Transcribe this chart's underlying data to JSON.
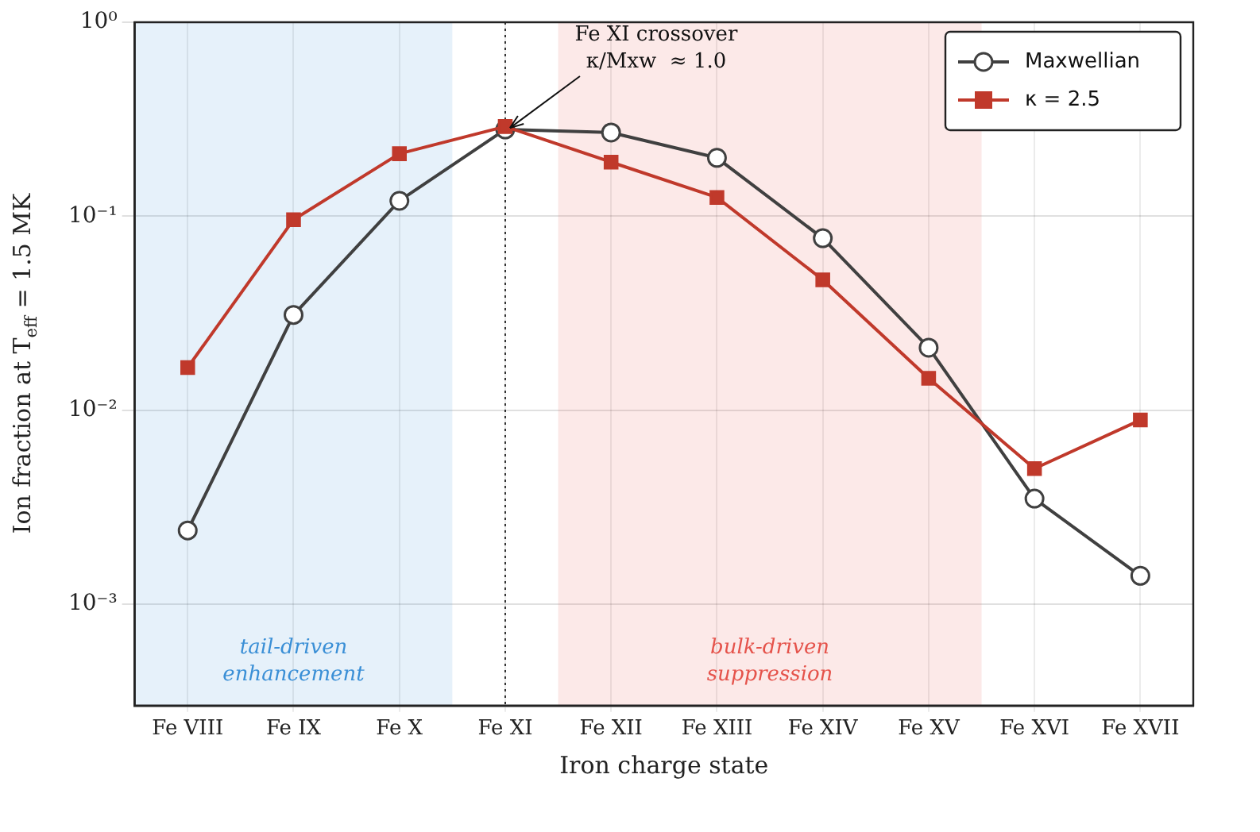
{
  "chart_data": {
    "type": "line",
    "xlabel": "Iron charge state",
    "ylabel": "Ion fraction at T$_{eff}$ = 1.5 MK",
    "categories": [
      "Fe VIII",
      "Fe IX",
      "Fe X",
      "Fe XI",
      "Fe XII",
      "Fe XIII",
      "Fe XIV",
      "Fe XV",
      "Fe XVI",
      "Fe XVII"
    ],
    "series": [
      {
        "name": "Maxwellian",
        "color": "#404040",
        "marker": "circle",
        "values": [
          0.0024,
          0.031,
          0.12,
          0.28,
          0.27,
          0.2,
          0.077,
          0.021,
          0.0035,
          0.0014
        ]
      },
      {
        "name": "κ = 2.5",
        "color": "#c0392b",
        "marker": "square",
        "values": [
          0.0166,
          0.096,
          0.21,
          0.29,
          0.19,
          0.125,
          0.047,
          0.0146,
          0.005,
          0.0089
        ]
      }
    ],
    "log": "y",
    "ylim": [
      0.0003,
      1
    ],
    "yticks": [
      {
        "value": 0.001,
        "label": "10⁻³"
      },
      {
        "value": 0.01,
        "label": "10⁻²"
      },
      {
        "value": 0.1,
        "label": "10⁻¹"
      },
      {
        "value": 1,
        "label": "10⁰"
      }
    ],
    "bands": [
      {
        "axis": "x",
        "from": "Fe VIII",
        "to": "Fe X",
        "label": "tail-driven\nenhancement",
        "color": "#3a8fd6"
      },
      {
        "axis": "x",
        "from": "Fe XII",
        "to": "Fe XV",
        "label": "bulk-driven\nsuppression",
        "color": "#e5534b"
      }
    ],
    "ref_lines": [
      {
        "axis": "x",
        "value": "Fe XI",
        "color": "#000000",
        "line_style": "dotted"
      }
    ],
    "annotations": [
      {
        "text": "Fe XI crossover\nκ/Mxw  ≈ 1.0",
        "x": "Fe XI",
        "y": 0.28
      }
    ],
    "grid": true,
    "legend": "top right",
    "line_style": "solid"
  }
}
